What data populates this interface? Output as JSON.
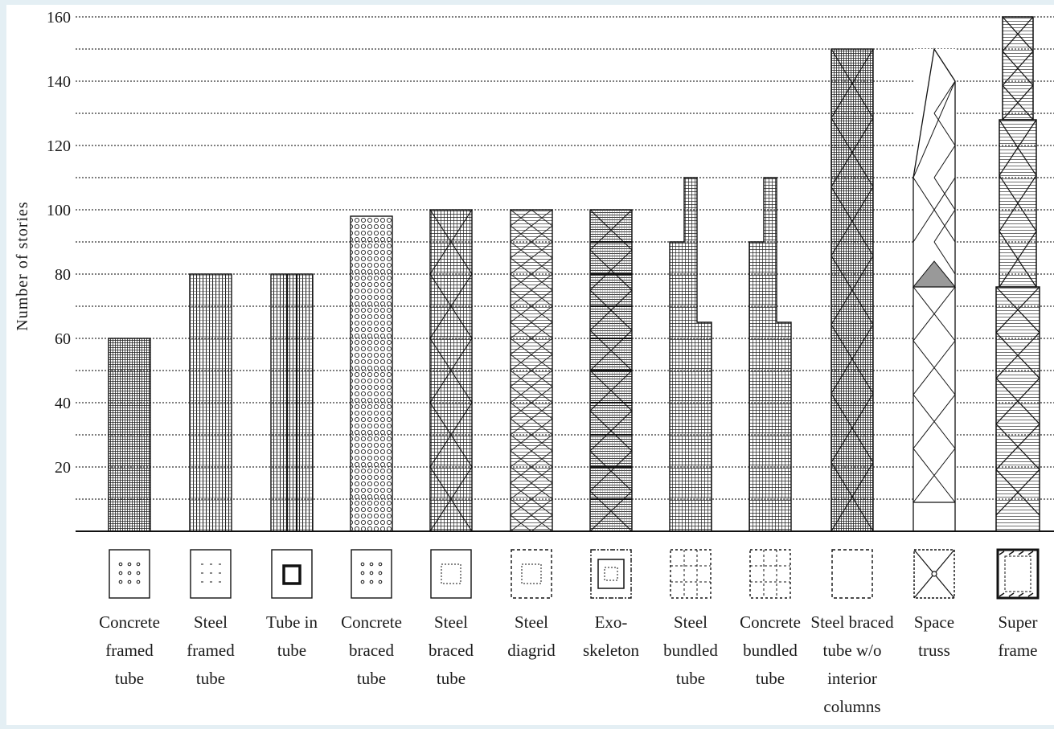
{
  "chart_data": {
    "type": "bar",
    "ylabel": "Number of stories",
    "ylim": [
      0,
      160
    ],
    "yticks": [
      20,
      40,
      60,
      80,
      100,
      120,
      140,
      160
    ],
    "grid": true,
    "categories": [
      {
        "label": [
          "Concrete",
          "framed",
          "tube"
        ],
        "value": 60,
        "plan": "concrete-framed",
        "pattern": "fineGrid"
      },
      {
        "label": [
          "Steel",
          "framed",
          "tube"
        ],
        "value": 80,
        "plan": "steel-framed",
        "pattern": "vertGrid"
      },
      {
        "label": [
          "Tube in",
          "tube"
        ],
        "value": 80,
        "plan": "tube-in-tube",
        "pattern": "vertGrid"
      },
      {
        "label": [
          "Concrete",
          "braced",
          "tube"
        ],
        "value": 98,
        "plan": "concrete-braced",
        "pattern": "dots"
      },
      {
        "label": [
          "Steel",
          "braced",
          "tube"
        ],
        "value": 100,
        "plan": "steel-braced",
        "pattern": "grid"
      },
      {
        "label": [
          "Steel",
          "diagrid"
        ],
        "value": 100,
        "plan": "steel-diagrid",
        "pattern": "horiz"
      },
      {
        "label": [
          "Exo-",
          "skeleton"
        ],
        "value": 100,
        "plan": "exoskeleton",
        "pattern": "horizDense"
      },
      {
        "label": [
          "Steel",
          "bundled",
          "tube"
        ],
        "value": 110,
        "plan": "steel-bundled",
        "pattern": "grid"
      },
      {
        "label": [
          "Concrete",
          "bundled",
          "tube"
        ],
        "value": 110,
        "plan": "concrete-bundled",
        "pattern": "grid"
      },
      {
        "label": [
          "Steel braced",
          "tube w/o",
          "interior",
          "columns"
        ],
        "value": 150,
        "plan": "steel-braced-no-columns",
        "pattern": "fineGrid"
      },
      {
        "label": [
          "Space",
          "truss"
        ],
        "value": 150,
        "plan": "space-truss",
        "pattern": "none"
      },
      {
        "label": [
          "Super",
          "frame"
        ],
        "value": 160,
        "plan": "super-frame",
        "pattern": "horiz"
      }
    ]
  }
}
